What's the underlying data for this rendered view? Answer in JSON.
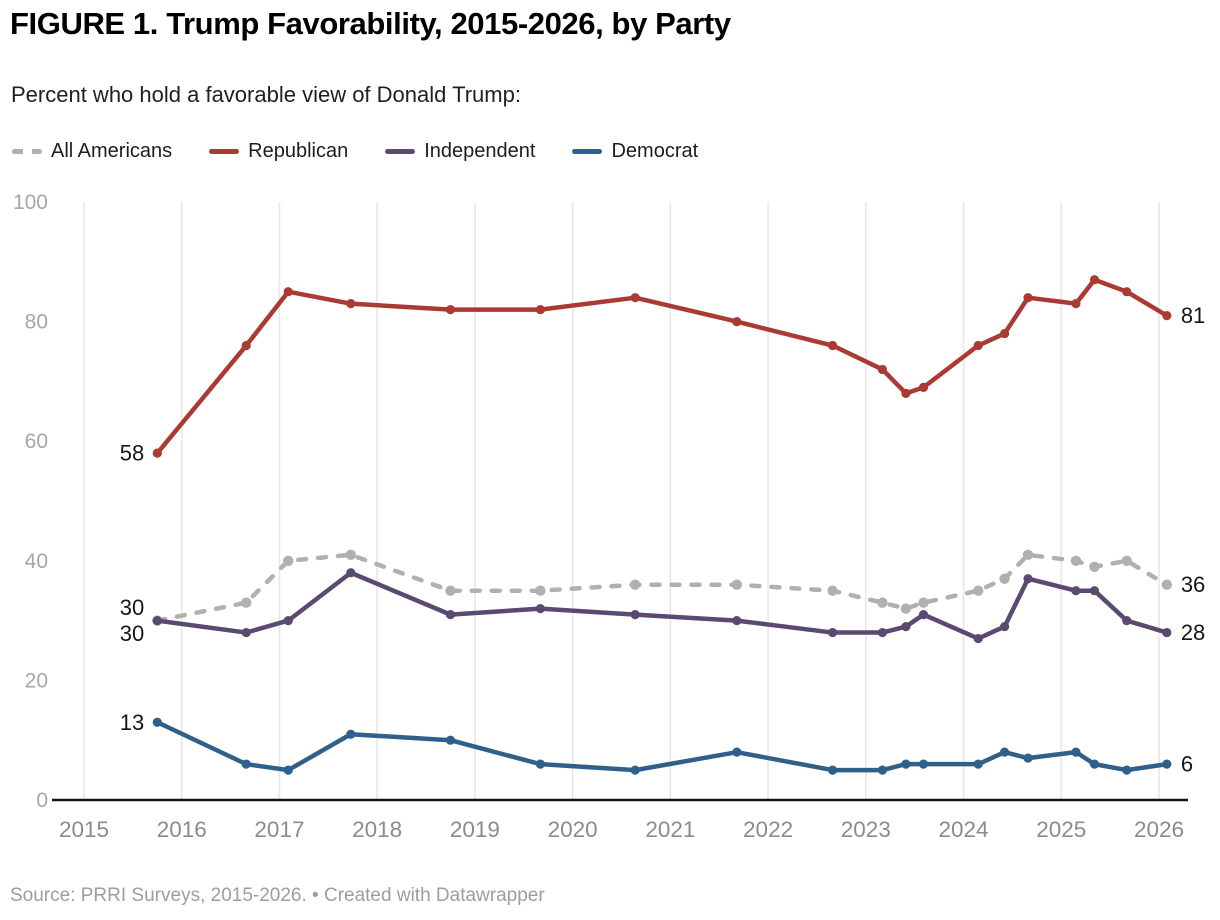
{
  "header": {
    "title": "FIGURE 1. Trump Favorability, 2015-2026, by Party",
    "subtitle": "Percent who hold a favorable view of Donald Trump:"
  },
  "footer": {
    "text": "Source: PRRI Surveys, 2015-2026. • Created with Datawrapper"
  },
  "chart_data": {
    "type": "line",
    "x": [
      2015.75,
      2016.66,
      2017.09,
      2017.73,
      2018.75,
      2019.67,
      2020.64,
      2021.68,
      2022.66,
      2023.17,
      2023.41,
      2023.59,
      2024.15,
      2024.42,
      2024.66,
      2025.15,
      2025.34,
      2025.67,
      2026.08
    ],
    "series": [
      {
        "name": "All Americans",
        "color": "#b0b0b0",
        "dashed": true,
        "values": [
          30,
          33,
          40,
          41,
          35,
          35,
          36,
          36,
          35,
          33,
          32,
          33,
          35,
          37,
          41,
          40,
          39,
          40,
          36
        ]
      },
      {
        "name": "Republican",
        "color": "#ab3a32",
        "dashed": false,
        "values": [
          58,
          76,
          85,
          83,
          82,
          82,
          84,
          80,
          76,
          72,
          68,
          69,
          76,
          78,
          84,
          83,
          87,
          85,
          81
        ]
      },
      {
        "name": "Independent",
        "color": "#5b4a70",
        "dashed": false,
        "values": [
          30,
          28,
          30,
          38,
          31,
          32,
          31,
          30,
          28,
          28,
          29,
          31,
          27,
          29,
          37,
          35,
          35,
          30,
          28
        ]
      },
      {
        "name": "Democrat",
        "color": "#2f608a",
        "dashed": false,
        "values": [
          13,
          6,
          5,
          11,
          10,
          6,
          5,
          8,
          5,
          5,
          6,
          6,
          6,
          8,
          7,
          8,
          6,
          5,
          6
        ]
      }
    ],
    "start_labels": [
      "30",
      "58",
      "30",
      "13"
    ],
    "end_labels": [
      "36",
      "81",
      "28",
      "6"
    ],
    "title": "FIGURE 1. Trump Favorability, 2015-2026, by Party",
    "xlabel": "",
    "ylabel": "",
    "x_ticks": [
      2015,
      2016,
      2017,
      2018,
      2019,
      2020,
      2021,
      2022,
      2023,
      2024,
      2025,
      2026
    ],
    "y_ticks": [
      0,
      20,
      40,
      60,
      80,
      100
    ],
    "xlim": [
      2015,
      2026.35
    ],
    "ylim": [
      0,
      100
    ],
    "grid": "vertical-only",
    "legend_position": "top",
    "colors": {
      "gridline": "#e7e7e7",
      "baseline": "#161616",
      "y_tick_text": "#a6a6a6",
      "x_tick_text": "#8b8b8b",
      "value_label_text": "#161616"
    }
  }
}
